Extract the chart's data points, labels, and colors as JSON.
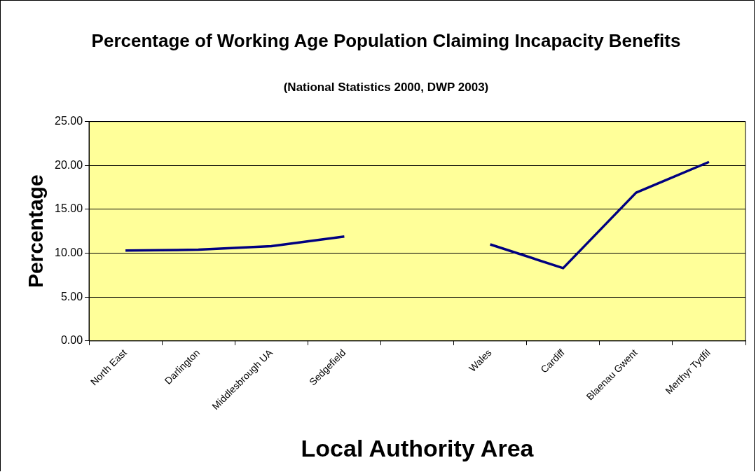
{
  "chart_data": {
    "type": "line",
    "title": "Percentage of Working Age Population Claiming Incapacity Benefits",
    "subtitle": "(National Statistics 2000, DWP 2003)",
    "xlabel": "Local Authority Area",
    "ylabel": "Percentage",
    "categories": [
      "North East",
      "Darlington",
      "Middlesbrough UA",
      "Sedgefield",
      null,
      "Wales",
      "Cardiff",
      "Blaenau Gwent",
      "Merthyr Tydfil"
    ],
    "series": [
      {
        "color": "#000080",
        "values": [
          10.3,
          10.4,
          10.8,
          11.9,
          null,
          11.0,
          8.3,
          16.9,
          20.4
        ]
      }
    ],
    "ylim": [
      0,
      25
    ],
    "yticks": [
      {
        "value": 0,
        "label": "0.00"
      },
      {
        "value": 5,
        "label": "5.00"
      },
      {
        "value": 10,
        "label": "10.00"
      },
      {
        "value": 15,
        "label": "15.00"
      },
      {
        "value": 20,
        "label": "20.00"
      },
      {
        "value": 25,
        "label": "25.00"
      }
    ],
    "grid": "y",
    "legend": false,
    "marker": "none",
    "line_style": "solid"
  }
}
